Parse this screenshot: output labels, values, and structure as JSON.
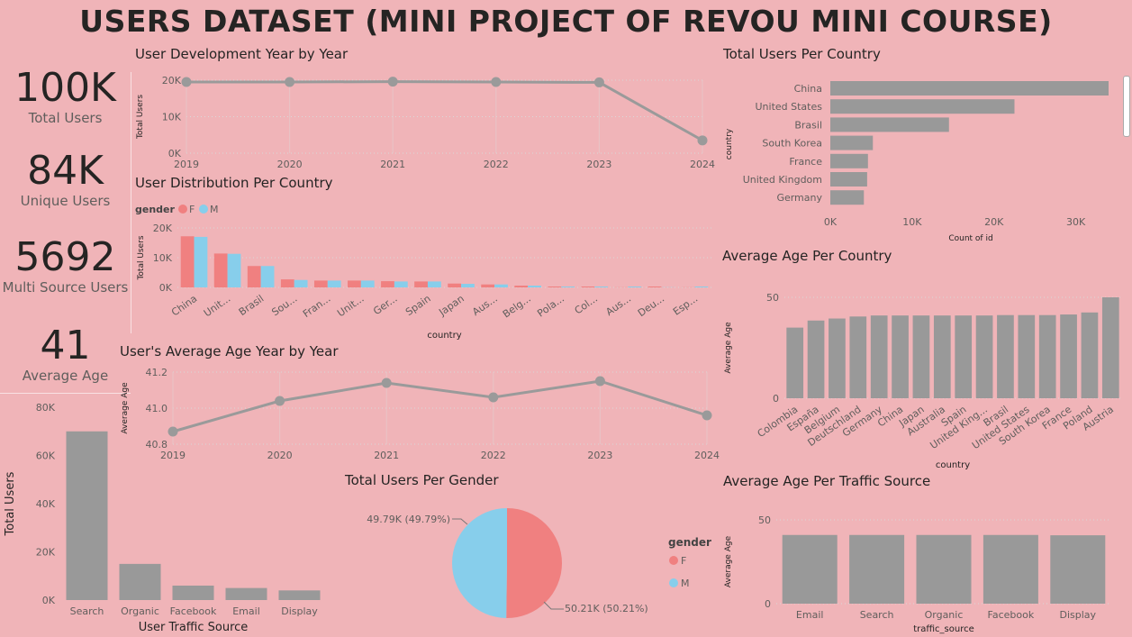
{
  "title": "USERS DATASET (MINI PROJECT OF REVOU MINI COURSE)",
  "kpis": [
    {
      "value": "100K",
      "label": "Total Users"
    },
    {
      "value": "84K",
      "label": "Unique Users"
    },
    {
      "value": "5692",
      "label": "Multi Source Users"
    },
    {
      "value": "41",
      "label": "Average Age"
    }
  ],
  "colors": {
    "bar": "#999999",
    "female": "#f08080",
    "male": "#87ceeb",
    "line": "#9a9a9a"
  },
  "chart_data": [
    {
      "id": "users_year",
      "type": "line",
      "title": "User Development Year by Year",
      "xlabel": "",
      "ylabel": "Total Users",
      "x": [
        "2019",
        "2020",
        "2021",
        "2022",
        "2023",
        "2024"
      ],
      "values": [
        19500,
        19500,
        19600,
        19500,
        19400,
        3500
      ],
      "ylim": [
        0,
        20000
      ],
      "yticks": [
        0,
        10000,
        20000
      ],
      "ytick_labels": [
        "0K",
        "10K",
        "20K"
      ]
    },
    {
      "id": "dist_country",
      "type": "bar",
      "title": "User Distribution Per Country",
      "xlabel": "country",
      "ylabel": "Total Users",
      "legend_title": "gender",
      "categories": [
        "China",
        "Unit...",
        "Brasil",
        "Sou...",
        "Fran...",
        "Unit...",
        "Ger...",
        "Spain",
        "Japan",
        "Aus...",
        "Belg...",
        "Pola...",
        "Col...",
        "Aus...",
        "Deu...",
        "Esp..."
      ],
      "series": [
        {
          "name": "F",
          "values": [
            17200,
            11400,
            7200,
            2700,
            2300,
            2300,
            2100,
            2000,
            1300,
            1000,
            600,
            300,
            300,
            50,
            300,
            50
          ]
        },
        {
          "name": "M",
          "values": [
            17000,
            11300,
            7200,
            2500,
            2300,
            2300,
            2000,
            2000,
            1200,
            1000,
            600,
            300,
            300,
            300,
            50,
            300
          ]
        }
      ],
      "ylim": [
        0,
        20000
      ],
      "yticks": [
        0,
        10000,
        20000
      ],
      "ytick_labels": [
        "0K",
        "10K",
        "20K"
      ]
    },
    {
      "id": "age_year",
      "type": "line",
      "title": "User's Average Age Year by Year",
      "xlabel": "",
      "ylabel": "Average Age",
      "x": [
        "2019",
        "2020",
        "2021",
        "2022",
        "2023",
        "2024"
      ],
      "values": [
        40.87,
        41.04,
        41.14,
        41.06,
        41.15,
        40.96
      ],
      "ylim": [
        40.8,
        41.2
      ],
      "yticks": [
        40.8,
        41.0,
        41.2
      ],
      "ytick_labels": [
        "40.8",
        "41.0",
        "41.2"
      ]
    },
    {
      "id": "traffic_users",
      "type": "bar",
      "title": "",
      "xlabel": "User Traffic Source",
      "ylabel": "Total Users",
      "categories": [
        "Search",
        "Organic",
        "Facebook",
        "Email",
        "Display"
      ],
      "values": [
        70000,
        15000,
        6000,
        5000,
        4000
      ],
      "ylim": [
        0,
        80000
      ],
      "yticks": [
        0,
        20000,
        40000,
        60000,
        80000
      ],
      "ytick_labels": [
        "0K",
        "20K",
        "40K",
        "60K",
        "80K"
      ]
    },
    {
      "id": "gender_pie",
      "type": "pie",
      "title": "Total Users Per Gender",
      "legend_title": "gender",
      "categories": [
        "F",
        "M"
      ],
      "values": [
        50.21,
        49.79
      ],
      "labels": [
        "50.21K (50.21%)",
        "49.79K (49.79%)"
      ]
    },
    {
      "id": "country_users",
      "type": "bar",
      "orientation": "horizontal",
      "title": "Total Users Per Country",
      "xlabel": "Count of id",
      "ylabel": "country",
      "categories": [
        "China",
        "United States",
        "Brasil",
        "South Korea",
        "France",
        "United Kingdom",
        "Germany"
      ],
      "values": [
        34000,
        22500,
        14500,
        5200,
        4600,
        4500,
        4100
      ],
      "xlim": [
        0,
        34000
      ],
      "xticks": [
        0,
        10000,
        20000,
        30000
      ],
      "xtick_labels": [
        "0K",
        "10K",
        "20K",
        "30K"
      ]
    },
    {
      "id": "age_country",
      "type": "bar",
      "title": "Average Age Per Country",
      "xlabel": "country",
      "ylabel": "Average Age",
      "categories": [
        "Colombia",
        "España",
        "Belgium",
        "Deutschland",
        "Germany",
        "China",
        "Japan",
        "Australia",
        "Spain",
        "United King...",
        "Brasil",
        "United States",
        "South Korea",
        "France",
        "Poland",
        "Austria"
      ],
      "values": [
        35,
        38.5,
        39.5,
        40.5,
        41,
        41,
        41,
        41,
        41,
        41,
        41.2,
        41.2,
        41.2,
        41.5,
        42.5,
        50
      ],
      "ylim": [
        0,
        50
      ],
      "yticks": [
        0,
        50
      ],
      "ytick_labels": [
        "0",
        "50"
      ]
    },
    {
      "id": "age_traffic",
      "type": "bar",
      "title": "Average Age Per Traffic Source",
      "xlabel": "traffic_source",
      "ylabel": "Average Age",
      "categories": [
        "Email",
        "Search",
        "Organic",
        "Facebook",
        "Display"
      ],
      "values": [
        41,
        41,
        41,
        41,
        40.8
      ],
      "ylim": [
        0,
        50
      ],
      "yticks": [
        0,
        50
      ],
      "ytick_labels": [
        "0",
        "50"
      ]
    }
  ]
}
